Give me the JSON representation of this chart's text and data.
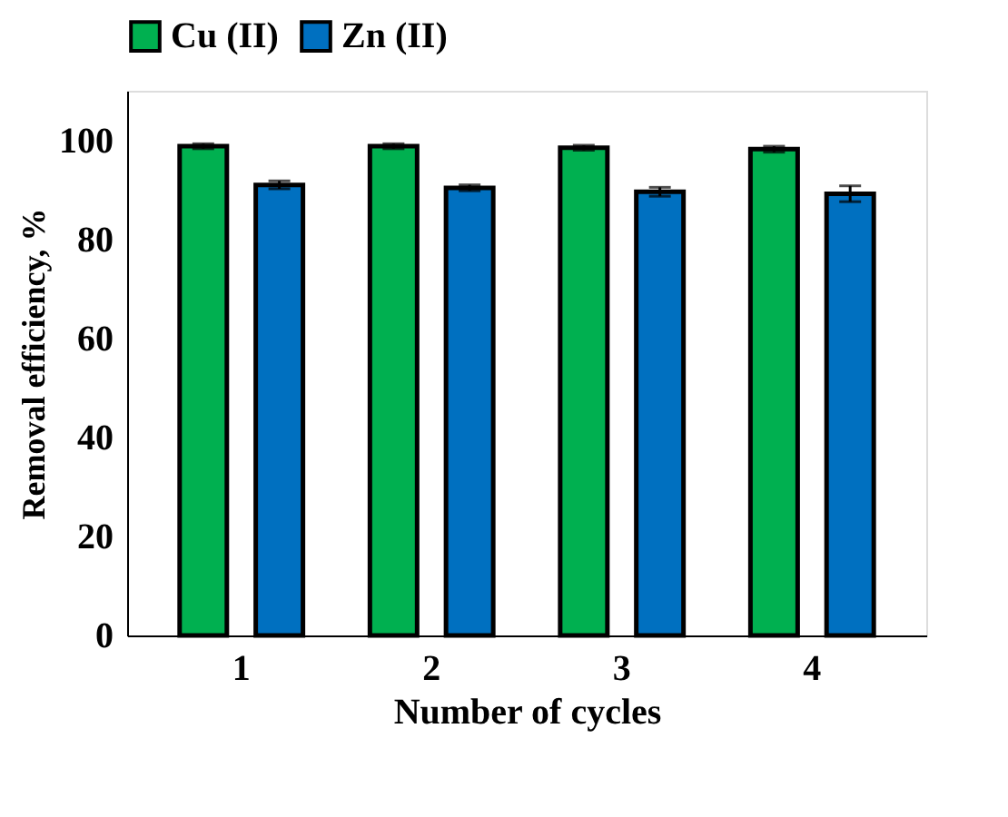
{
  "chart_data": {
    "type": "bar",
    "xlabel": "Number of cycles",
    "ylabel": "Removal efficiency, %",
    "categories": [
      "1",
      "2",
      "3",
      "4"
    ],
    "series": [
      {
        "name": "Cu (II)",
        "color": "#00b050",
        "values": [
          98.8,
          98.8,
          98.5,
          98.2
        ],
        "errors": [
          0.5,
          0.5,
          0.5,
          0.6
        ]
      },
      {
        "name": "Zn (II)",
        "color": "#0070c0",
        "values": [
          91.0,
          90.4,
          89.6,
          89.2
        ],
        "errors": [
          0.8,
          0.6,
          0.9,
          1.6
        ]
      }
    ],
    "ylim": [
      0,
      110
    ],
    "yticks": [
      0,
      20,
      40,
      60,
      80,
      100
    ],
    "grid": false,
    "legend": "top"
  }
}
